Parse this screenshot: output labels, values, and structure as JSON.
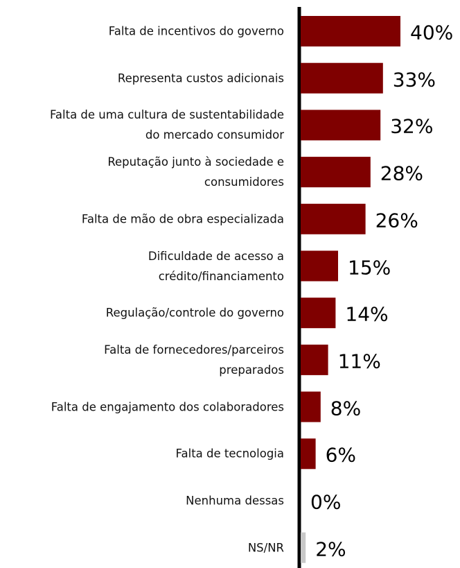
{
  "chart_data": {
    "type": "bar",
    "orientation": "horizontal",
    "categories": [
      "Falta de incentivos do governo",
      "Representa custos adicionais",
      "Falta de uma cultura de sustentabilidade\ndo mercado consumidor",
      "Reputação junto à sociedade e\nconsumidores",
      "Falta de mão de obra especializada",
      "Dificuldade de acesso a\ncrédito/financiamento",
      "Regulação/controle do governo",
      "Falta de fornecedores/parceiros\npreparados",
      "Falta de engajamento dos colaboradores",
      "Falta de tecnologia",
      "Nenhuma dessas",
      "NS/NR"
    ],
    "values": [
      40,
      33,
      32,
      28,
      26,
      15,
      14,
      11,
      8,
      6,
      0,
      2
    ],
    "value_labels": [
      "40%",
      "33%",
      "32%",
      "28%",
      "26%",
      "15%",
      "14%",
      "11%",
      "8%",
      "6%",
      "0%",
      "2%"
    ],
    "colors": [
      "#7f0000",
      "#7f0000",
      "#7f0000",
      "#7f0000",
      "#7f0000",
      "#7f0000",
      "#7f0000",
      "#7f0000",
      "#7f0000",
      "#7f0000",
      "#7f0000",
      "#c8c8c8"
    ],
    "xlim": [
      0,
      40
    ]
  }
}
